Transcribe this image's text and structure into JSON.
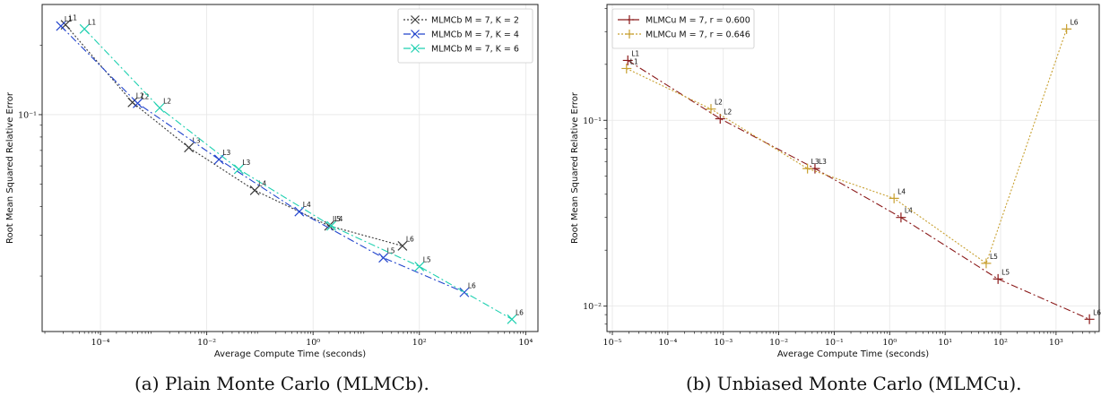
{
  "captions": {
    "a": "(a) Plain Monte Carlo (MLMCb).",
    "b": "(b) Unbiased Monte Carlo (MLMCu)."
  },
  "chart_data": [
    {
      "type": "line",
      "panel": "a",
      "xscale": "log",
      "yscale": "log",
      "xlabel": "Average Compute Time (seconds)",
      "ylabel": "Root Mean Squared Relative Error",
      "xlim": [
        8e-06,
        17000
      ],
      "ylim": [
        0.0115,
        0.3
      ],
      "xticks": [
        {
          "v": 0.0001,
          "label": "10⁻⁴"
        },
        {
          "v": 0.01,
          "label": "10⁻²"
        },
        {
          "v": 1,
          "label": "10⁰"
        },
        {
          "v": 100,
          "label": "10²"
        },
        {
          "v": 10000,
          "label": "10⁴"
        }
      ],
      "yticks": [
        {
          "v": 0.1,
          "label": "10⁻¹"
        }
      ],
      "grid": true,
      "legend_position": "top-right",
      "series": [
        {
          "name": "MLMCb M = 7, K = 2",
          "color": "#3a3a3a",
          "dash": "2,2",
          "x": [
            2.2e-05,
            0.0004,
            0.0046,
            0.08,
            2.0,
            48
          ],
          "y": [
            0.245,
            0.113,
            0.072,
            0.047,
            0.033,
            0.027
          ],
          "labels": [
            "L1",
            "L2",
            "L3",
            "L4",
            "L5",
            "L6"
          ]
        },
        {
          "name": "MLMCb M = 7, K = 4",
          "color": "#2244cc",
          "dash": "8,3,2,3",
          "x": [
            1.8e-05,
            0.0005,
            0.017,
            0.55,
            21,
            700
          ],
          "y": [
            0.242,
            0.112,
            0.064,
            0.038,
            0.024,
            0.017
          ],
          "labels": [
            "L1",
            "L2",
            "L3",
            "L4",
            "L5",
            "L6"
          ]
        },
        {
          "name": "MLMCb M = 7, K = 6",
          "color": "#1ed0b0",
          "dash": "8,3,2,3",
          "x": [
            5e-05,
            0.0013,
            0.04,
            2.2,
            100,
            5500
          ],
          "y": [
            0.235,
            0.107,
            0.058,
            0.033,
            0.022,
            0.013
          ],
          "labels": [
            "L1",
            "L2",
            "L3",
            "L4",
            "L5",
            "L6"
          ]
        }
      ]
    },
    {
      "type": "line",
      "panel": "b",
      "xscale": "log",
      "yscale": "log",
      "xlabel": "Average Compute Time (seconds)",
      "ylabel": "Root Mean Squared Relative Error",
      "xlim": [
        8e-06,
        6000
      ],
      "ylim": [
        0.0073,
        0.42
      ],
      "xticks": [
        {
          "v": 1e-05,
          "label": "10⁻⁵"
        },
        {
          "v": 0.0001,
          "label": "10⁻⁴"
        },
        {
          "v": 0.001,
          "label": "10⁻³"
        },
        {
          "v": 0.01,
          "label": "10⁻²"
        },
        {
          "v": 0.1,
          "label": "10⁻¹"
        },
        {
          "v": 1,
          "label": "10⁰"
        },
        {
          "v": 10,
          "label": "10¹"
        },
        {
          "v": 100,
          "label": "10²"
        },
        {
          "v": 1000,
          "label": "10³"
        }
      ],
      "yticks": [
        {
          "v": 0.01,
          "label": "10⁻²"
        },
        {
          "v": 0.1,
          "label": "10⁻¹"
        }
      ],
      "grid": true,
      "legend_position": "top-left",
      "series": [
        {
          "name": "MLMCu M = 7, r = 0.600",
          "color": "#8b1a1a",
          "dash": "8,3,2,3",
          "x": [
            1.9e-05,
            0.00088,
            0.045,
            1.6,
            90,
            4000
          ],
          "y": [
            0.21,
            0.102,
            0.055,
            0.03,
            0.014,
            0.0085
          ],
          "labels": [
            "L1",
            "L2",
            "L3",
            "L4",
            "L5",
            "L6"
          ]
        },
        {
          "name": "MLMCu M = 7, r = 0.646",
          "color": "#c8a030",
          "dash": "2,2",
          "x": [
            1.8e-05,
            0.0006,
            0.033,
            1.2,
            55,
            1550
          ],
          "y": [
            0.19,
            0.115,
            0.055,
            0.038,
            0.017,
            0.31
          ],
          "labels": [
            "L1",
            "L2",
            "L3",
            "L4",
            "L5",
            "L6"
          ]
        }
      ]
    }
  ]
}
